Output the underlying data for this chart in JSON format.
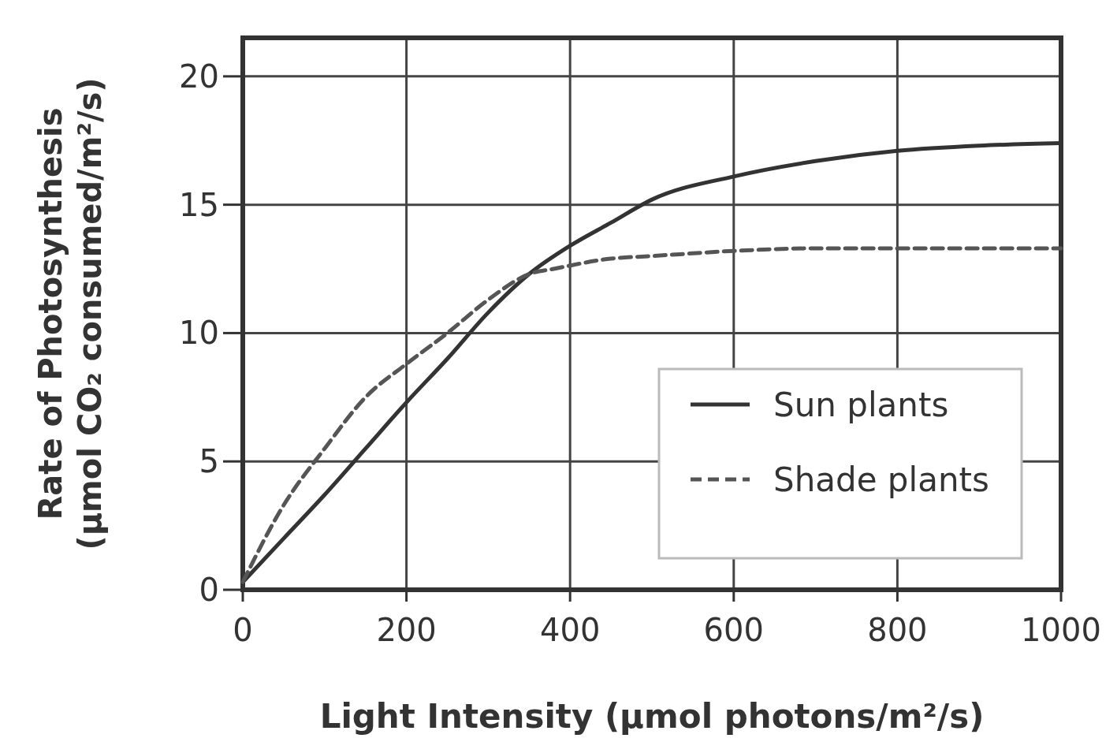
{
  "chart_data": {
    "type": "line",
    "xlabel": "Light Intensity (μmol photons/m²/s)",
    "ylabel": "Rate of Photosynthesis (μmol CO₂ consumed/m²/s)",
    "xlim": [
      0,
      1000
    ],
    "xticks": [
      0,
      200,
      400,
      600,
      800,
      1000
    ],
    "ylim": [
      0,
      21.5
    ],
    "yticks": [
      0,
      5,
      10,
      15,
      20
    ],
    "grid": true,
    "legend": "bottom right",
    "series": [
      {
        "name": "Sun plants",
        "color": "#333333",
        "line_style": "solid",
        "x": [
          0,
          50,
          100,
          150,
          200,
          250,
          300,
          350,
          400,
          450,
          500,
          600,
          700,
          800,
          900,
          1000
        ],
        "values": [
          0.3,
          2,
          3.7,
          5.5,
          7.3,
          9,
          10.8,
          12.3,
          13.4,
          14.3,
          15.2,
          16.1,
          16.7,
          17.1,
          17.3,
          17.4
        ]
      },
      {
        "name": "Shade plants",
        "color": "#555555",
        "line_style": "dashed",
        "x": [
          0,
          50,
          100,
          150,
          200,
          250,
          300,
          350,
          380,
          450,
          500,
          600,
          700,
          800,
          1000
        ],
        "values": [
          0.3,
          3.3,
          5.5,
          7.5,
          8.8,
          10,
          11.3,
          12.3,
          12.5,
          12.9,
          13,
          13.2,
          13.3,
          13.3,
          13.3
        ]
      }
    ]
  }
}
